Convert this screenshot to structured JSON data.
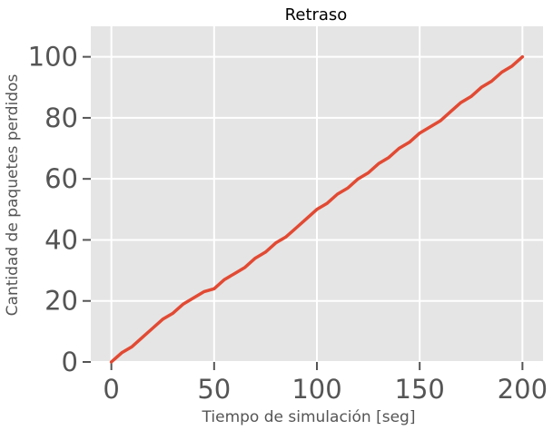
{
  "chart_data": {
    "type": "line",
    "title": "Retraso",
    "xlabel": "Tiempo de simulación [seg]",
    "ylabel": "Cantidad de paquetes perdidos",
    "xlim": [
      -10,
      210
    ],
    "ylim": [
      0,
      110
    ],
    "xticks": [
      0,
      50,
      100,
      150,
      200
    ],
    "yticks": [
      0,
      20,
      40,
      60,
      80,
      100
    ],
    "xtick_labels": [
      "0",
      "50",
      "100",
      "150",
      "200"
    ],
    "ytick_labels": [
      "0",
      "20",
      "40",
      "60",
      "80",
      "100"
    ],
    "grid": true,
    "style": "ggplot",
    "colors": {
      "line": "#E24A33",
      "plot_bg": "#E5E5E5",
      "grid": "#FFFFFF",
      "text": "#555555"
    },
    "series": [
      {
        "x": [
          0,
          5,
          10,
          15,
          20,
          25,
          30,
          35,
          40,
          45,
          50,
          55,
          60,
          65,
          70,
          75,
          80,
          85,
          90,
          95,
          100,
          105,
          110,
          115,
          120,
          125,
          130,
          135,
          140,
          145,
          150,
          155,
          160,
          165,
          170,
          175,
          180,
          185,
          190,
          195,
          200
        ],
        "y": [
          0,
          3,
          5,
          8,
          11,
          14,
          16,
          19,
          21,
          23,
          24,
          27,
          29,
          31,
          34,
          36,
          39,
          41,
          44,
          47,
          50,
          52,
          55,
          57,
          60,
          62,
          65,
          67,
          70,
          72,
          75,
          77,
          79,
          82,
          85,
          87,
          90,
          92,
          95,
          97,
          100
        ]
      }
    ]
  }
}
